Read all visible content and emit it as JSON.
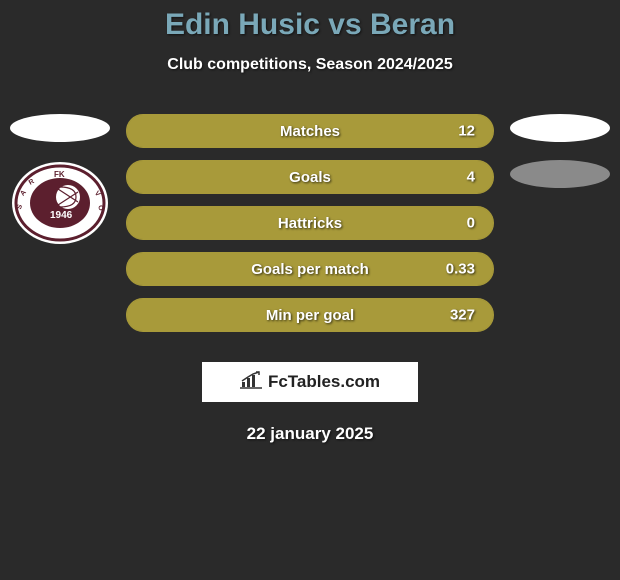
{
  "header": {
    "title": "Edin Husic vs Beran",
    "subtitle": "Club competitions, Season 2024/2025",
    "title_color": "#7aa8b8"
  },
  "left": {
    "avatar_ellipse_color": "#ffffff",
    "badge_bg": "#ffffff",
    "badge_primary": "#5c1f2e",
    "badge_year": "1946",
    "badge_text_top": "FK",
    "badge_text_side": "SARAJEVO"
  },
  "right": {
    "avatar_ellipse_color": "#ffffff",
    "secondary_ellipse_color": "#8a8a8a"
  },
  "stats": {
    "bar_fill_color": "#a89a3a",
    "bar_bg_color": "#8e8230",
    "items": [
      {
        "label": "Matches",
        "value": "12",
        "fill_pct": 100
      },
      {
        "label": "Goals",
        "value": "4",
        "fill_pct": 100
      },
      {
        "label": "Hattricks",
        "value": "0",
        "fill_pct": 100
      },
      {
        "label": "Goals per match",
        "value": "0.33",
        "fill_pct": 100
      },
      {
        "label": "Min per goal",
        "value": "327",
        "fill_pct": 100
      }
    ]
  },
  "brand": {
    "text": "FcTables.com",
    "icon_color": "#333333",
    "bg": "#ffffff"
  },
  "footer": {
    "date": "22 january 2025"
  },
  "style": {
    "background": "#2a2a2a",
    "text_shadow": "1px 1px 2px rgba(0,0,0,0.6)",
    "label_fontsize": 15,
    "title_fontsize": 30
  }
}
